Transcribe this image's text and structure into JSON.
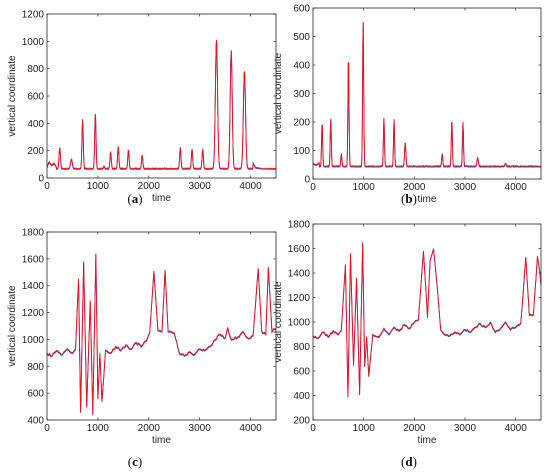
{
  "series_colors": {
    "red": "#e8141c",
    "blue": "#3a3fb8"
  },
  "chart_data": [
    {
      "type": "line",
      "panel_label": "(a)",
      "xlabel": "time",
      "ylabel": "vertical coordinate",
      "xlim": [
        0,
        4500
      ],
      "ylim": [
        0,
        1200
      ],
      "xticks": [
        0,
        1000,
        2000,
        3000,
        4000
      ],
      "yticks": [
        0,
        200,
        400,
        600,
        800,
        1000,
        1200
      ],
      "baseline": 70,
      "noise": 8,
      "start": [
        [
          0,
          80
        ],
        [
          40,
          120
        ],
        [
          90,
          95
        ],
        [
          140,
          110
        ],
        [
          180,
          85
        ]
      ],
      "end": [
        [
          4050,
          110
        ],
        [
          4100,
          78
        ],
        [
          4200,
          72
        ],
        [
          4500,
          70
        ]
      ],
      "peaks": [
        [
          250,
          225,
          20
        ],
        [
          480,
          140,
          25
        ],
        [
          700,
          430,
          18
        ],
        [
          950,
          475,
          18
        ],
        [
          1120,
          90,
          15
        ],
        [
          1250,
          195,
          18
        ],
        [
          1400,
          235,
          18
        ],
        [
          1600,
          210,
          18
        ],
        [
          1870,
          170,
          18
        ],
        [
          2620,
          225,
          18
        ],
        [
          2850,
          215,
          18
        ],
        [
          3060,
          215,
          18
        ],
        [
          3330,
          1015,
          30
        ],
        [
          3620,
          935,
          28
        ],
        [
          3880,
          790,
          30
        ]
      ]
    },
    {
      "type": "line",
      "panel_label": "(b)",
      "xlabel": "time",
      "ylabel": "vertical coordinate",
      "xlim": [
        0,
        4500
      ],
      "ylim": [
        0,
        600
      ],
      "xticks": [
        0,
        1000,
        2000,
        3000,
        4000
      ],
      "yticks": [
        0,
        100,
        200,
        300,
        400,
        500,
        600
      ],
      "baseline": 45,
      "noise": 4,
      "start": [
        [
          0,
          55
        ],
        [
          60,
          50
        ],
        [
          120,
          58
        ]
      ],
      "end": [
        [
          4500,
          45
        ]
      ],
      "peaks": [
        [
          180,
          200,
          15
        ],
        [
          350,
          215,
          15
        ],
        [
          560,
          90,
          15
        ],
        [
          700,
          435,
          15
        ],
        [
          990,
          560,
          15
        ],
        [
          1400,
          215,
          15
        ],
        [
          1600,
          210,
          15
        ],
        [
          1820,
          130,
          18
        ],
        [
          2550,
          90,
          15
        ],
        [
          2740,
          210,
          15
        ],
        [
          2960,
          200,
          15
        ],
        [
          3250,
          75,
          20
        ],
        [
          3800,
          55,
          20
        ]
      ]
    },
    {
      "type": "line",
      "panel_label": "(c)",
      "xlabel": "time",
      "ylabel": "vertical coordinate",
      "xlim": [
        0,
        4500
      ],
      "ylim": [
        400,
        1800
      ],
      "xticks": [
        0,
        1000,
        2000,
        3000,
        4000
      ],
      "yticks": [
        400,
        600,
        800,
        1000,
        1200,
        1400,
        1600,
        1800
      ],
      "baseline": 920,
      "noise": 18,
      "start": [
        [
          0,
          900
        ],
        [
          100,
          880
        ],
        [
          200,
          920
        ],
        [
          300,
          890
        ],
        [
          400,
          930
        ],
        [
          500,
          900
        ]
      ],
      "end": [
        [
          4450,
          1080
        ],
        [
          4500,
          1080
        ]
      ],
      "polyline": [
        [
          560,
          930
        ],
        [
          620,
          1450
        ],
        [
          660,
          460
        ],
        [
          720,
          1580
        ],
        [
          780,
          500
        ],
        [
          850,
          1290
        ],
        [
          900,
          440
        ],
        [
          960,
          1640
        ],
        [
          1000,
          560
        ],
        [
          1040,
          900
        ],
        [
          1080,
          540
        ],
        [
          1150,
          920
        ],
        [
          1250,
          900
        ],
        [
          1350,
          950
        ],
        [
          1450,
          920
        ],
        [
          1550,
          960
        ],
        [
          1650,
          930
        ],
        [
          1750,
          980
        ],
        [
          1850,
          950
        ],
        [
          1950,
          990
        ],
        [
          2020,
          1060
        ],
        [
          2100,
          1510
        ],
        [
          2180,
          1070
        ],
        [
          2260,
          1060
        ],
        [
          2320,
          1520
        ],
        [
          2380,
          1060
        ],
        [
          2500,
          1050
        ],
        [
          2600,
          900
        ],
        [
          2700,
          880
        ],
        [
          2800,
          910
        ],
        [
          2900,
          890
        ],
        [
          3000,
          930
        ],
        [
          3100,
          920
        ],
        [
          3200,
          950
        ],
        [
          3300,
          1000
        ],
        [
          3400,
          1040
        ],
        [
          3500,
          1010
        ],
        [
          3550,
          1090
        ],
        [
          3620,
          1000
        ],
        [
          3750,
          1020
        ],
        [
          3850,
          1060
        ],
        [
          3950,
          1010
        ],
        [
          4050,
          1030
        ],
        [
          4150,
          1530
        ],
        [
          4220,
          1060
        ],
        [
          4300,
          1040
        ],
        [
          4350,
          1540
        ],
        [
          4420,
          1060
        ]
      ]
    },
    {
      "type": "line",
      "panel_label": "(d)",
      "xlabel": "time",
      "ylabel": "vertical coordinate",
      "xlim": [
        0,
        4500
      ],
      "ylim": [
        200,
        1800
      ],
      "xticks": [
        0,
        1000,
        2000,
        3000,
        4000
      ],
      "yticks": [
        200,
        400,
        600,
        800,
        1000,
        1200,
        1400,
        1600,
        1800
      ],
      "baseline": 920,
      "noise": 18,
      "start": [
        [
          0,
          890
        ],
        [
          100,
          870
        ],
        [
          200,
          920
        ],
        [
          300,
          880
        ],
        [
          400,
          930
        ],
        [
          500,
          900
        ]
      ],
      "end": [
        [
          4500,
          1300
        ]
      ],
      "polyline": [
        [
          560,
          940
        ],
        [
          640,
          1470
        ],
        [
          690,
          390
        ],
        [
          740,
          1560
        ],
        [
          800,
          650
        ],
        [
          860,
          1360
        ],
        [
          920,
          410
        ],
        [
          980,
          1650
        ],
        [
          1020,
          640
        ],
        [
          1060,
          880
        ],
        [
          1100,
          560
        ],
        [
          1180,
          900
        ],
        [
          1300,
          880
        ],
        [
          1400,
          950
        ],
        [
          1500,
          900
        ],
        [
          1600,
          960
        ],
        [
          1700,
          930
        ],
        [
          1800,
          980
        ],
        [
          1900,
          950
        ],
        [
          2000,
          1000
        ],
        [
          2080,
          1020
        ],
        [
          2180,
          1580
        ],
        [
          2260,
          1040
        ],
        [
          2310,
          1500
        ],
        [
          2380,
          1600
        ],
        [
          2450,
          1300
        ],
        [
          2520,
          940
        ],
        [
          2600,
          900
        ],
        [
          2700,
          890
        ],
        [
          2800,
          920
        ],
        [
          2900,
          900
        ],
        [
          3000,
          940
        ],
        [
          3100,
          920
        ],
        [
          3200,
          960
        ],
        [
          3300,
          990
        ],
        [
          3400,
          960
        ],
        [
          3500,
          1000
        ],
        [
          3600,
          920
        ],
        [
          3700,
          950
        ],
        [
          3800,
          1000
        ],
        [
          3900,
          940
        ],
        [
          4000,
          960
        ],
        [
          4100,
          990
        ],
        [
          4200,
          1530
        ],
        [
          4270,
          1060
        ],
        [
          4350,
          1060
        ],
        [
          4430,
          1540
        ],
        [
          4480,
          1400
        ]
      ]
    }
  ]
}
